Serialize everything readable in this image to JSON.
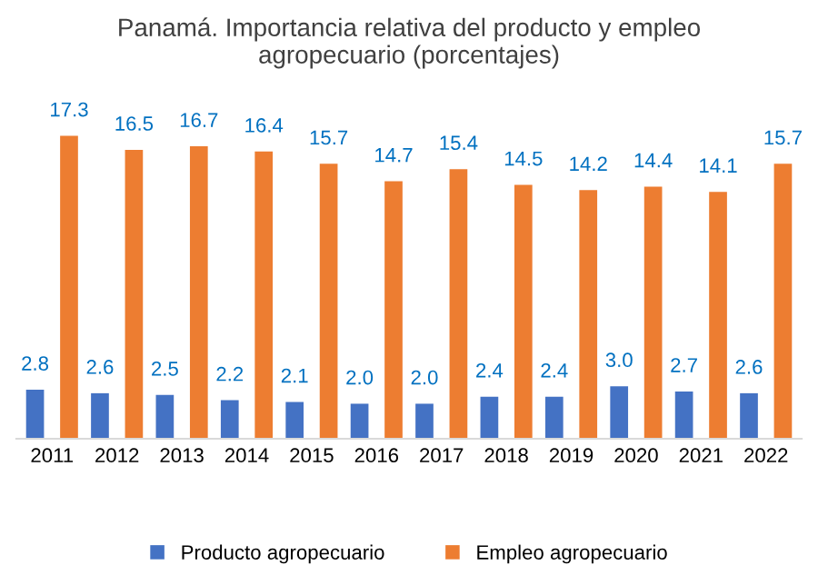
{
  "chart_data": {
    "type": "bar",
    "title": "Panamá. Importancia relativa del producto y empleo\nagropecuario (porcentajes)",
    "categories": [
      "2011",
      "2012",
      "2013",
      "2014",
      "2015",
      "2016",
      "2017",
      "2018",
      "2019",
      "2020",
      "2021",
      "2022"
    ],
    "series": [
      {
        "name": "Producto agropecuario",
        "color": "#4472c4",
        "values": [
          2.8,
          2.6,
          2.5,
          2.2,
          2.1,
          2.0,
          2.0,
          2.4,
          2.4,
          3.0,
          2.7,
          2.6
        ],
        "value_labels": [
          "2.8",
          "2.6",
          "2.5",
          "2.2",
          "2.1",
          "2.0",
          "2.0",
          "2.4",
          "2.4",
          "3.0",
          "2.7",
          "2.6"
        ]
      },
      {
        "name": "Empleo agropecuario",
        "color": "#ed7d31",
        "values": [
          17.3,
          16.5,
          16.7,
          16.4,
          15.7,
          14.7,
          15.4,
          14.5,
          14.2,
          14.4,
          14.1,
          15.7
        ],
        "value_labels": [
          "17.3",
          "16.5",
          "16.7",
          "16.4",
          "15.7",
          "14.7",
          "15.4",
          "14.5",
          "14.2",
          "14.4",
          "14.1",
          "15.7"
        ]
      }
    ],
    "legend": "bottom",
    "grid": false
  }
}
